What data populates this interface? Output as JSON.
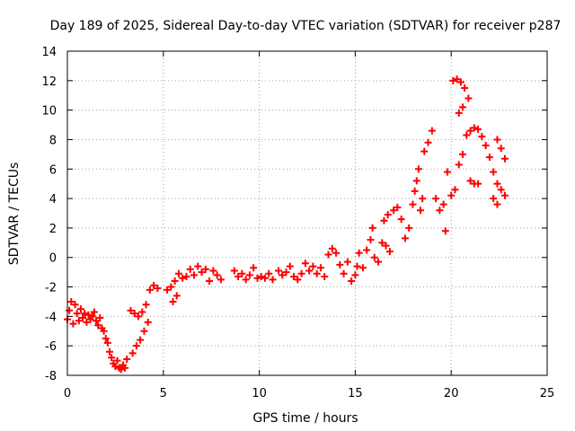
{
  "chart_data": {
    "type": "scatter",
    "title": "Day 189 of 2025, Sidereal Day-to-day VTEC variation (SDTVAR) for receiver p287",
    "xlabel": "GPS time / hours",
    "ylabel": "SDTVAR / TECUs",
    "xlim": [
      0,
      25
    ],
    "ylim": [
      -8,
      14
    ],
    "xticks": [
      0,
      5,
      10,
      15,
      20,
      25
    ],
    "yticks": [
      -8,
      -6,
      -4,
      -2,
      0,
      2,
      4,
      6,
      8,
      10,
      12,
      14
    ],
    "grid": true,
    "marker": "plus",
    "color": "#ff0000",
    "series": [
      {
        "name": "",
        "points": [
          [
            0.0,
            -4.2
          ],
          [
            0.1,
            -3.6
          ],
          [
            0.2,
            -3.0
          ],
          [
            0.3,
            -4.5
          ],
          [
            0.4,
            -3.2
          ],
          [
            0.5,
            -3.8
          ],
          [
            0.6,
            -4.3
          ],
          [
            0.7,
            -3.5
          ],
          [
            0.8,
            -4.1
          ],
          [
            0.9,
            -3.8
          ],
          [
            1.0,
            -4.4
          ],
          [
            1.1,
            -3.9
          ],
          [
            1.2,
            -4.2
          ],
          [
            1.3,
            -4.0
          ],
          [
            1.4,
            -3.7
          ],
          [
            1.5,
            -4.3
          ],
          [
            1.6,
            -4.6
          ],
          [
            1.7,
            -4.1
          ],
          [
            1.8,
            -4.8
          ],
          [
            1.9,
            -5.0
          ],
          [
            2.0,
            -5.5
          ],
          [
            2.1,
            -5.8
          ],
          [
            2.2,
            -6.4
          ],
          [
            2.3,
            -6.8
          ],
          [
            2.4,
            -7.2
          ],
          [
            2.5,
            -7.4
          ],
          [
            2.6,
            -7.0
          ],
          [
            2.7,
            -7.5
          ],
          [
            2.8,
            -7.6
          ],
          [
            2.9,
            -7.3
          ],
          [
            3.0,
            -7.5
          ],
          [
            3.1,
            -6.9
          ],
          [
            3.3,
            -3.6
          ],
          [
            3.5,
            -3.8
          ],
          [
            3.7,
            -4.0
          ],
          [
            3.9,
            -3.7
          ],
          [
            3.4,
            -6.5
          ],
          [
            3.6,
            -6.0
          ],
          [
            3.8,
            -5.6
          ],
          [
            4.0,
            -5.0
          ],
          [
            4.2,
            -4.4
          ],
          [
            4.1,
            -3.2
          ],
          [
            4.3,
            -2.2
          ],
          [
            4.5,
            -1.9
          ],
          [
            4.7,
            -2.1
          ],
          [
            5.2,
            -2.2
          ],
          [
            5.4,
            -2.0
          ],
          [
            5.6,
            -1.6
          ],
          [
            5.8,
            -1.1
          ],
          [
            6.0,
            -1.4
          ],
          [
            5.5,
            -3.0
          ],
          [
            5.7,
            -2.6
          ],
          [
            6.2,
            -1.3
          ],
          [
            6.4,
            -0.8
          ],
          [
            6.6,
            -1.2
          ],
          [
            6.8,
            -0.6
          ],
          [
            7.0,
            -1.0
          ],
          [
            7.2,
            -0.8
          ],
          [
            7.4,
            -1.6
          ],
          [
            7.6,
            -0.9
          ],
          [
            7.8,
            -1.2
          ],
          [
            8.0,
            -1.5
          ],
          [
            8.7,
            -0.9
          ],
          [
            8.9,
            -1.3
          ],
          [
            9.1,
            -1.1
          ],
          [
            9.3,
            -1.5
          ],
          [
            9.5,
            -1.2
          ],
          [
            9.7,
            -0.7
          ],
          [
            9.9,
            -1.4
          ],
          [
            10.1,
            -1.3
          ],
          [
            10.3,
            -1.4
          ],
          [
            10.5,
            -1.1
          ],
          [
            10.7,
            -1.5
          ],
          [
            11.0,
            -0.9
          ],
          [
            11.2,
            -1.2
          ],
          [
            11.4,
            -1.0
          ],
          [
            11.6,
            -0.6
          ],
          [
            11.8,
            -1.3
          ],
          [
            12.0,
            -1.5
          ],
          [
            12.2,
            -1.1
          ],
          [
            12.4,
            -0.4
          ],
          [
            12.6,
            -0.9
          ],
          [
            12.8,
            -0.6
          ],
          [
            13.0,
            -1.1
          ],
          [
            13.2,
            -0.7
          ],
          [
            13.4,
            -1.3
          ],
          [
            13.6,
            0.2
          ],
          [
            13.8,
            0.6
          ],
          [
            14.0,
            0.3
          ],
          [
            14.2,
            -0.5
          ],
          [
            14.4,
            -1.1
          ],
          [
            14.6,
            -0.3
          ],
          [
            14.8,
            -1.6
          ],
          [
            15.0,
            -1.2
          ],
          [
            15.1,
            -0.6
          ],
          [
            15.2,
            0.3
          ],
          [
            15.4,
            -0.7
          ],
          [
            15.6,
            0.5
          ],
          [
            15.8,
            1.2
          ],
          [
            15.9,
            2.0
          ],
          [
            16.0,
            0.0
          ],
          [
            16.2,
            -0.3
          ],
          [
            16.4,
            1.0
          ],
          [
            16.6,
            0.8
          ],
          [
            16.8,
            0.4
          ],
          [
            16.5,
            2.5
          ],
          [
            16.7,
            2.9
          ],
          [
            17.0,
            3.2
          ],
          [
            17.2,
            3.4
          ],
          [
            17.4,
            2.6
          ],
          [
            17.6,
            1.3
          ],
          [
            17.8,
            2.0
          ],
          [
            18.0,
            3.6
          ],
          [
            18.1,
            4.5
          ],
          [
            18.2,
            5.2
          ],
          [
            18.3,
            6.0
          ],
          [
            18.4,
            3.2
          ],
          [
            18.5,
            4.0
          ],
          [
            18.6,
            7.2
          ],
          [
            18.8,
            7.8
          ],
          [
            19.0,
            8.6
          ],
          [
            19.2,
            4.0
          ],
          [
            19.4,
            3.2
          ],
          [
            19.6,
            3.6
          ],
          [
            19.7,
            1.8
          ],
          [
            19.8,
            5.8
          ],
          [
            20.0,
            4.2
          ],
          [
            20.2,
            4.6
          ],
          [
            20.4,
            6.3
          ],
          [
            20.6,
            7.0
          ],
          [
            20.8,
            8.3
          ],
          [
            21.0,
            8.6
          ],
          [
            21.2,
            8.8
          ],
          [
            21.4,
            8.7
          ],
          [
            21.6,
            8.2
          ],
          [
            20.1,
            12.0
          ],
          [
            20.3,
            12.1
          ],
          [
            20.5,
            11.9
          ],
          [
            20.7,
            11.5
          ],
          [
            20.9,
            10.8
          ],
          [
            20.4,
            9.8
          ],
          [
            20.6,
            10.2
          ],
          [
            21.0,
            5.2
          ],
          [
            21.2,
            5.0
          ],
          [
            21.4,
            5.0
          ],
          [
            21.8,
            7.6
          ],
          [
            22.0,
            6.8
          ],
          [
            22.2,
            5.8
          ],
          [
            22.4,
            5.0
          ],
          [
            22.6,
            4.6
          ],
          [
            22.8,
            4.2
          ],
          [
            22.4,
            8.0
          ],
          [
            22.6,
            7.4
          ],
          [
            22.8,
            6.7
          ],
          [
            22.2,
            4.0
          ],
          [
            22.4,
            3.6
          ]
        ]
      }
    ]
  }
}
